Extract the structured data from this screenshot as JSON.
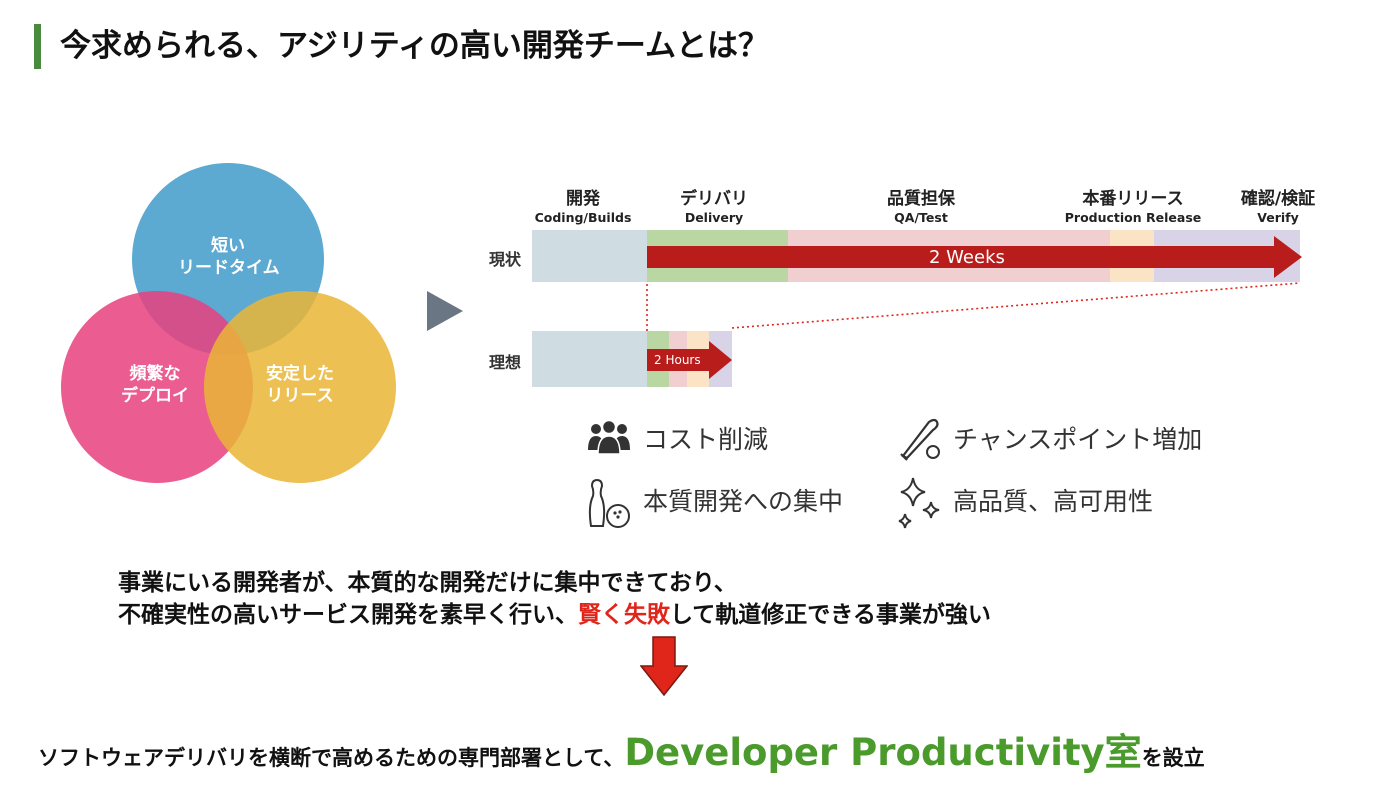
{
  "title": "今求められる、アジリティの高い開発チームとは？",
  "venn": {
    "top": [
      "短い",
      "リードタイム"
    ],
    "left": [
      "頻繁な",
      "デプロイ"
    ],
    "right": [
      "安定した",
      "リリース"
    ],
    "colors": {
      "top": "#3f9ac9",
      "left": "#e8417e",
      "right": "#eab536"
    }
  },
  "phases": [
    {
      "jp": "開発",
      "en": "Coding/Builds"
    },
    {
      "jp": "デリバリ",
      "en": "Delivery"
    },
    {
      "jp": "品質担保",
      "en": "QA/Test"
    },
    {
      "jp": "本番リリース",
      "en": "Production Release"
    },
    {
      "jp": "確認/検証",
      "en": "Verify"
    }
  ],
  "rows": {
    "current_label": "現状",
    "current_bar": "2 Weeks",
    "ideal_label": "理想",
    "ideal_bar": "2 Hours"
  },
  "benefits": [
    {
      "icon": "people-icon",
      "text": "コスト削減"
    },
    {
      "icon": "baseball-bat-icon",
      "text": "チャンスポイント増加"
    },
    {
      "icon": "bowling-icon",
      "text": "本質開発への集中"
    },
    {
      "icon": "sparkle-icon",
      "text": "高品質、高可用性"
    }
  ],
  "statement": {
    "line1": "事業にいる開発者が、本質的な開発だけに集中できており、",
    "line2_a": "不確実性の高いサービス開発を素早く行い、",
    "line2_highlight": "賢く失敗",
    "line2_b": "して軌道修正できる事業が強い"
  },
  "bottom": {
    "prefix": "ソフトウェアデリバリを横断で高めるための専門部署として、",
    "highlight": "Developer Productivity室",
    "suffix": "を設立"
  },
  "colors": {
    "accent_green": "#4a9a2c",
    "highlight_red": "#e0251b",
    "bar_red": "#b81d1c"
  }
}
